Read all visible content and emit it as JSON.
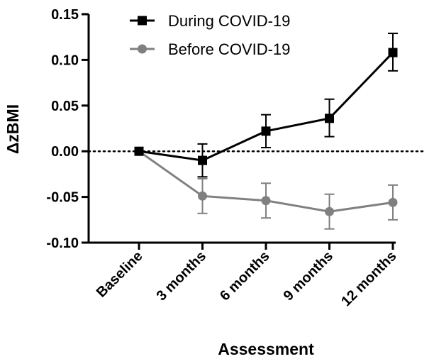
{
  "chart_data": {
    "type": "line",
    "title": "",
    "xlabel": "Assessment",
    "ylabel": "ΔzBMI",
    "categories": [
      "Baseline",
      "3 months",
      "6 months",
      "9 months",
      "12 months"
    ],
    "ylim": [
      -0.1,
      0.15
    ],
    "yticks": [
      "-0.10",
      "-0.05",
      "0.00",
      "0.05",
      "0.10",
      "0.15"
    ],
    "ytick_values": [
      -0.1,
      -0.05,
      0.0,
      0.05,
      0.1,
      0.15
    ],
    "reference_line": 0,
    "legend_position": "top-left",
    "grid": false,
    "series": [
      {
        "name": "During COVID-19",
        "marker": "square",
        "color": "#000000",
        "values": [
          0.0,
          -0.01,
          0.022,
          0.036,
          0.108
        ],
        "error_low": [
          0.0,
          -0.028,
          0.004,
          0.016,
          0.088
        ],
        "error_high": [
          0.0,
          0.008,
          0.04,
          0.057,
          0.129
        ]
      },
      {
        "name": "Before COVID-19",
        "marker": "circle",
        "color": "#808080",
        "values": [
          0.0,
          -0.049,
          -0.054,
          -0.066,
          -0.056
        ],
        "error_low": [
          0.0,
          -0.068,
          -0.073,
          -0.085,
          -0.075
        ],
        "error_high": [
          0.0,
          -0.03,
          -0.035,
          -0.047,
          -0.037
        ]
      }
    ]
  }
}
